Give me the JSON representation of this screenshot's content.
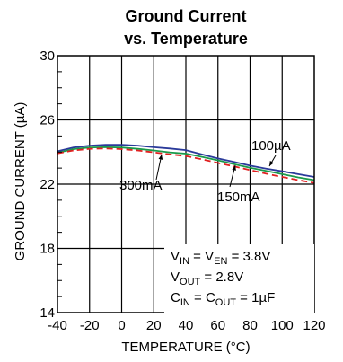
{
  "chart_data": {
    "type": "line",
    "title_line1": "Ground Current",
    "title_line2": "vs. Temperature",
    "xlabel": "TEMPERATURE (°C)",
    "ylabel": "GROUND CURRENT (µA)",
    "xlim": [
      -40,
      120
    ],
    "ylim": [
      14,
      30
    ],
    "xticks": [
      -40,
      -20,
      0,
      20,
      40,
      60,
      80,
      100,
      120
    ],
    "yticks": [
      14,
      18,
      22,
      26,
      30
    ],
    "xtick_labels": [
      "-40",
      "-20",
      "0",
      "20",
      "40",
      "60",
      "80",
      "100",
      "120"
    ],
    "ytick_labels": [
      "14",
      "18",
      "22",
      "26",
      "30"
    ],
    "grid": true,
    "series": [
      {
        "name": "100µA",
        "color": "#2a3a9a",
        "dash": "solid",
        "x": [
          -40,
          -30,
          -20,
          -10,
          0,
          10,
          20,
          30,
          40,
          50,
          60,
          70,
          80,
          90,
          100,
          110,
          120
        ],
        "y": [
          24.05,
          24.28,
          24.4,
          24.45,
          24.45,
          24.4,
          24.3,
          24.22,
          24.12,
          23.85,
          23.6,
          23.38,
          23.15,
          22.97,
          22.8,
          22.62,
          22.45
        ]
      },
      {
        "name": "150mA",
        "color": "#1a9a4a",
        "dash": "solid",
        "x": [
          -40,
          -30,
          -20,
          -10,
          0,
          10,
          20,
          30,
          40,
          50,
          60,
          70,
          80,
          90,
          100,
          110,
          120
        ],
        "y": [
          23.95,
          24.18,
          24.28,
          24.3,
          24.28,
          24.2,
          24.1,
          23.98,
          23.9,
          23.7,
          23.48,
          23.25,
          23.02,
          22.82,
          22.62,
          22.42,
          22.25
        ]
      },
      {
        "name": "300mA",
        "color": "#e02020",
        "dash": "dashed",
        "x": [
          -40,
          -30,
          -20,
          -10,
          0,
          10,
          20,
          30,
          40,
          50,
          60,
          70,
          80,
          90,
          100,
          110,
          120
        ],
        "y": [
          23.92,
          24.1,
          24.2,
          24.22,
          24.18,
          24.1,
          23.98,
          23.86,
          23.75,
          23.55,
          23.32,
          23.1,
          22.88,
          22.65,
          22.45,
          22.25,
          22.08
        ]
      }
    ],
    "series_labels": [
      "100µA",
      "300mA",
      "150mA"
    ],
    "conditions": [
      {
        "main": "V",
        "sub": "IN",
        "mid": " = V",
        "sub2": "EN",
        "tail": " = 3.8V"
      },
      {
        "main": "V",
        "sub": "OUT",
        "mid": " = 2.8V",
        "sub2": "",
        "tail": ""
      },
      {
        "main": "C",
        "sub": "IN",
        "mid": " = C",
        "sub2": "OUT",
        "tail": " = 1µF"
      }
    ]
  }
}
